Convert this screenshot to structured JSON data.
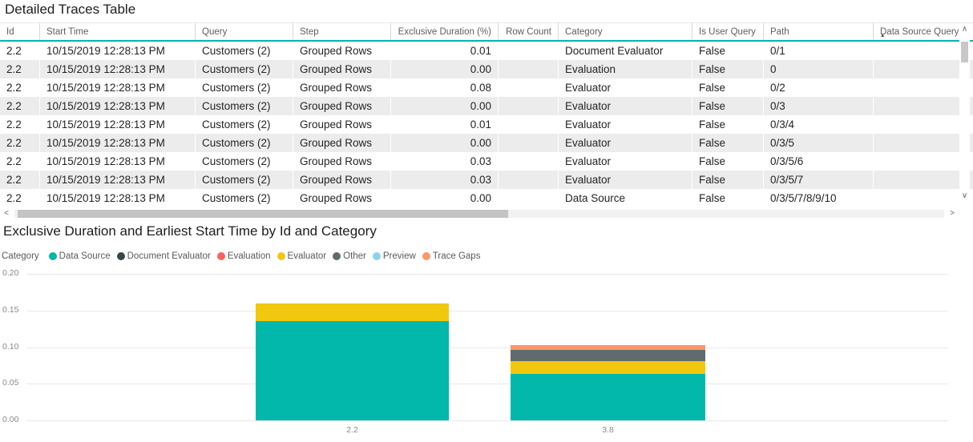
{
  "table": {
    "title": "Detailed Traces Table",
    "columns": [
      {
        "label": "Id",
        "align": "left"
      },
      {
        "label": "Start Time",
        "align": "left"
      },
      {
        "label": "Query",
        "align": "left"
      },
      {
        "label": "Step",
        "align": "left"
      },
      {
        "label": "Exclusive Duration (%)",
        "align": "right"
      },
      {
        "label": "Row Count",
        "align": "right"
      },
      {
        "label": "Category",
        "align": "left"
      },
      {
        "label": "Is User Query",
        "align": "left"
      },
      {
        "label": "Path",
        "align": "left"
      },
      {
        "label": "Data Source Query",
        "align": "left",
        "sort": "ascending"
      }
    ],
    "rows": [
      [
        "2.2",
        "10/15/2019 12:28:13 PM",
        "Customers (2)",
        "Grouped Rows",
        "0.01",
        "",
        "Document Evaluator",
        "False",
        "0/1",
        ""
      ],
      [
        "2.2",
        "10/15/2019 12:28:13 PM",
        "Customers (2)",
        "Grouped Rows",
        "0.00",
        "",
        "Evaluation",
        "False",
        "0",
        ""
      ],
      [
        "2.2",
        "10/15/2019 12:28:13 PM",
        "Customers (2)",
        "Grouped Rows",
        "0.08",
        "",
        "Evaluator",
        "False",
        "0/2",
        ""
      ],
      [
        "2.2",
        "10/15/2019 12:28:13 PM",
        "Customers (2)",
        "Grouped Rows",
        "0.00",
        "",
        "Evaluator",
        "False",
        "0/3",
        ""
      ],
      [
        "2.2",
        "10/15/2019 12:28:13 PM",
        "Customers (2)",
        "Grouped Rows",
        "0.01",
        "",
        "Evaluator",
        "False",
        "0/3/4",
        ""
      ],
      [
        "2.2",
        "10/15/2019 12:28:13 PM",
        "Customers (2)",
        "Grouped Rows",
        "0.00",
        "",
        "Evaluator",
        "False",
        "0/3/5",
        ""
      ],
      [
        "2.2",
        "10/15/2019 12:28:13 PM",
        "Customers (2)",
        "Grouped Rows",
        "0.03",
        "",
        "Evaluator",
        "False",
        "0/3/5/6",
        ""
      ],
      [
        "2.2",
        "10/15/2019 12:28:13 PM",
        "Customers (2)",
        "Grouped Rows",
        "0.03",
        "",
        "Evaluator",
        "False",
        "0/3/5/7",
        ""
      ],
      [
        "2.2",
        "10/15/2019 12:28:13 PM",
        "Customers (2)",
        "Grouped Rows",
        "0.00",
        "",
        "Data Source",
        "False",
        "0/3/5/7/8/9/10",
        ""
      ]
    ],
    "accent_color": "#01B8AA"
  },
  "icons": {
    "sort_ascending": "▲",
    "scroll_up": "∧",
    "scroll_down": "∨",
    "scroll_left": "<",
    "scroll_right": ">"
  },
  "chart": {
    "title": "Exclusive Duration and Earliest Start Time by Id and Category",
    "legend_title": "Category"
  },
  "chart_data": {
    "type": "bar",
    "stacked": true,
    "title": "Exclusive Duration and Earliest Start Time by Id and Category",
    "xlabel": "",
    "ylabel": "",
    "categories": [
      "2.2",
      "3.8"
    ],
    "series": [
      {
        "name": "Data Source",
        "color": "#01B8AA",
        "values": [
          0.135,
          0.063
        ]
      },
      {
        "name": "Document Evaluator",
        "color": "#374649",
        "values": [
          0,
          0
        ]
      },
      {
        "name": "Evaluation",
        "color": "#FD625E",
        "values": [
          0,
          0
        ]
      },
      {
        "name": "Evaluator",
        "color": "#F2C80F",
        "values": [
          0.025,
          0.018
        ]
      },
      {
        "name": "Other",
        "color": "#5F6B6D",
        "values": [
          0,
          0.015
        ]
      },
      {
        "name": "Preview",
        "color": "#8AD4EB",
        "values": [
          0,
          0
        ]
      },
      {
        "name": "Trace Gaps",
        "color": "#FE9666",
        "values": [
          0,
          0.007
        ]
      }
    ],
    "ylim": [
      0,
      0.2
    ],
    "ytick_labels": [
      "0.00",
      "0.05",
      "0.10",
      "0.15",
      "0.20"
    ],
    "grid": true,
    "legend_position": "top"
  }
}
